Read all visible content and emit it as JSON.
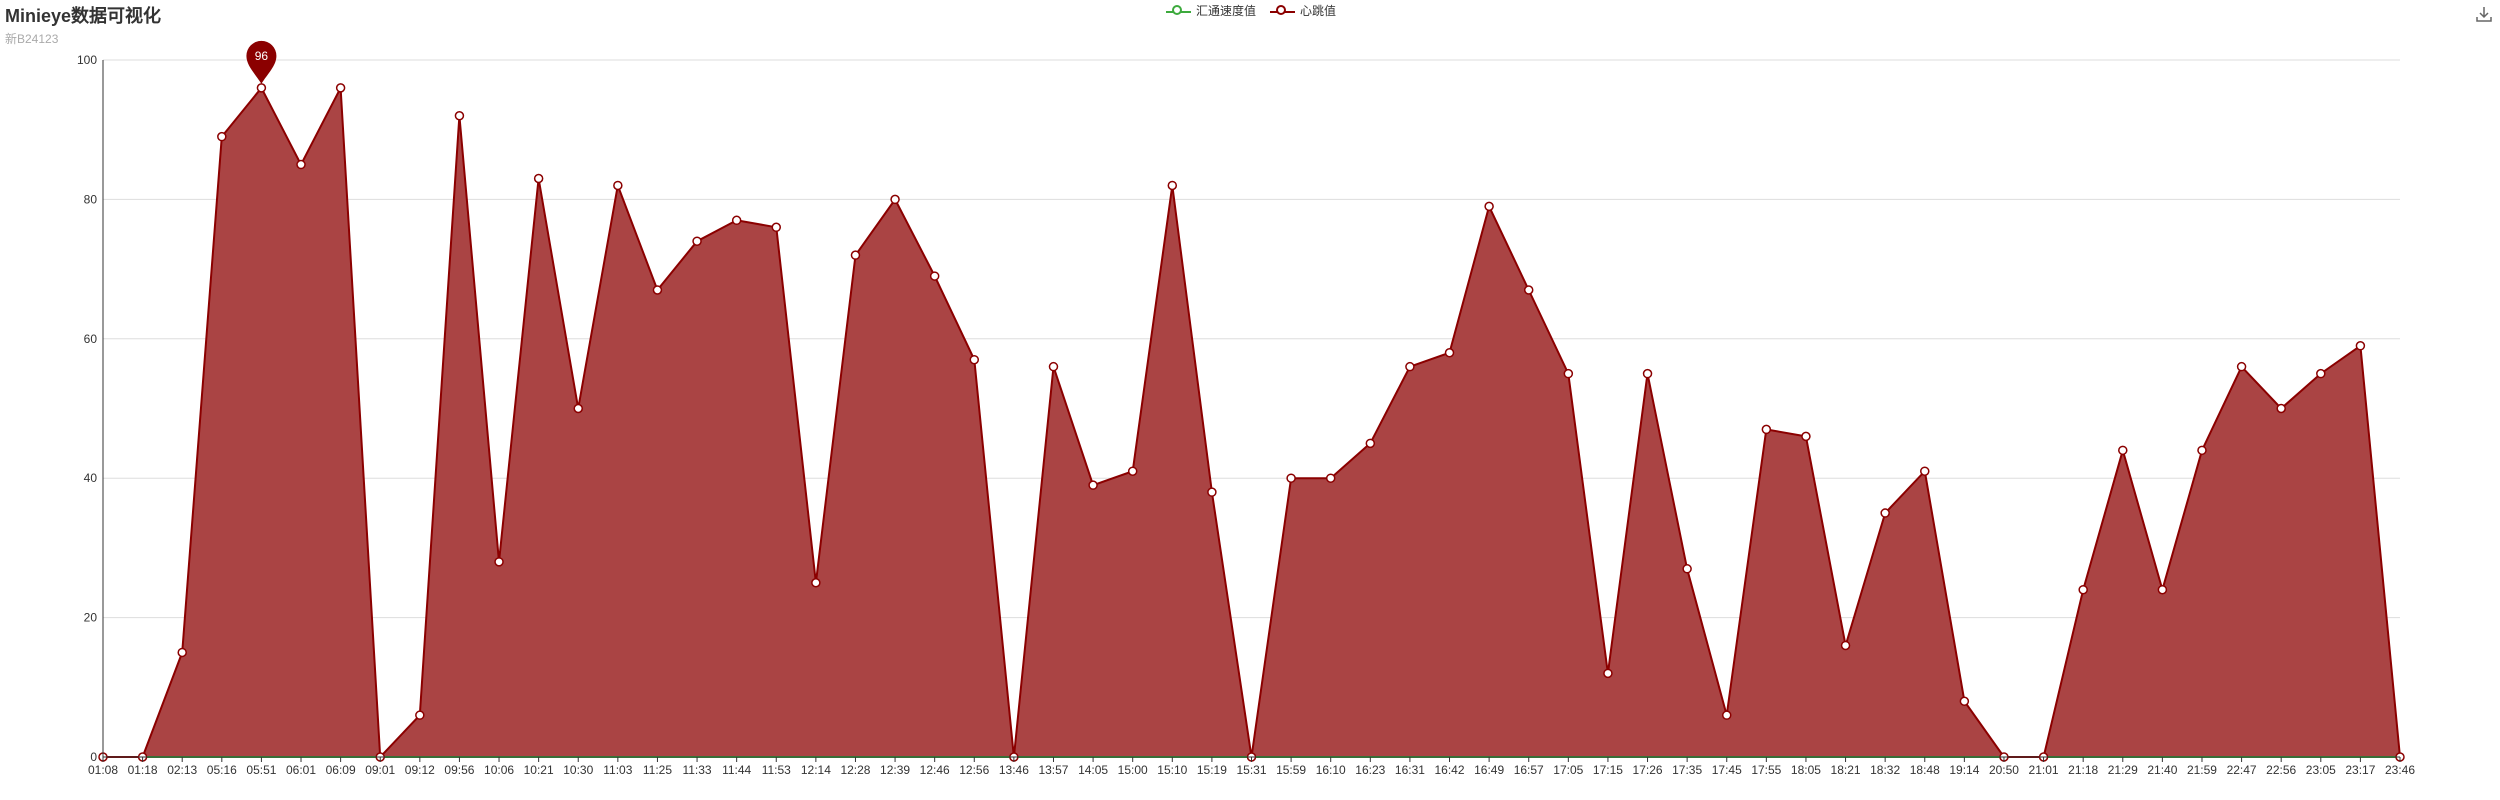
{
  "header": {
    "title": "Minieye数据可视化",
    "subtitle": "新B24123"
  },
  "toolbar": {
    "download_icon": "download-icon"
  },
  "legend": [
    {
      "name": "汇通速度值",
      "color": "#3daa3d"
    },
    {
      "name": "心跳值",
      "color": "#8b0000"
    }
  ],
  "chart_data": {
    "type": "area",
    "ylim": [
      0,
      100
    ],
    "yticks": [
      0,
      20,
      40,
      60,
      80,
      100
    ],
    "grid": true,
    "legend_position": "top-center",
    "categories": [
      "01:08",
      "01:18",
      "02:13",
      "05:16",
      "05:51",
      "06:01",
      "06:09",
      "09:01",
      "09:12",
      "09:56",
      "10:06",
      "10:21",
      "10:30",
      "11:03",
      "11:25",
      "11:33",
      "11:44",
      "11:53",
      "12:14",
      "12:28",
      "12:39",
      "12:46",
      "12:56",
      "13:46",
      "13:57",
      "14:05",
      "15:00",
      "15:10",
      "15:19",
      "15:31",
      "15:59",
      "16:10",
      "16:23",
      "16:31",
      "16:42",
      "16:49",
      "16:57",
      "17:05",
      "17:15",
      "17:26",
      "17:35",
      "17:45",
      "17:55",
      "18:05",
      "18:21",
      "18:32",
      "18:48",
      "19:14",
      "20:50",
      "21:01",
      "21:18",
      "21:29",
      "21:40",
      "21:59",
      "22:47",
      "22:56",
      "23:05",
      "23:17",
      "23:46"
    ],
    "series": [
      {
        "name": "汇通速度值",
        "color": "#3daa3d",
        "values": [
          0,
          0,
          0,
          0,
          0,
          0,
          0,
          0,
          0,
          0,
          0,
          0,
          0,
          0,
          0,
          0,
          0,
          0,
          0,
          0,
          0,
          0,
          0,
          0,
          0,
          0,
          0,
          0,
          0,
          0,
          0,
          0,
          0,
          0,
          0,
          0,
          0,
          0,
          0,
          0,
          0,
          0,
          0,
          0,
          0,
          0,
          0,
          0,
          0,
          0,
          0,
          0,
          0,
          0,
          0,
          0,
          0,
          0,
          0
        ]
      },
      {
        "name": "心跳值",
        "color": "#8b0000",
        "fill": "#aa4444",
        "values": [
          0,
          0,
          15,
          89,
          96,
          85,
          96,
          0,
          6,
          92,
          28,
          83,
          50,
          82,
          67,
          74,
          77,
          76,
          25,
          72,
          80,
          69,
          57,
          0,
          56,
          39,
          41,
          82,
          38,
          0,
          40,
          40,
          45,
          56,
          58,
          79,
          67,
          55,
          12,
          55,
          27,
          6,
          47,
          46,
          16,
          35,
          41,
          8,
          0,
          0,
          24,
          44,
          24,
          44,
          56,
          50,
          55,
          59,
          0
        ],
        "markpoint": {
          "label": "96",
          "category": "05:51",
          "value": 96
        }
      }
    ]
  }
}
